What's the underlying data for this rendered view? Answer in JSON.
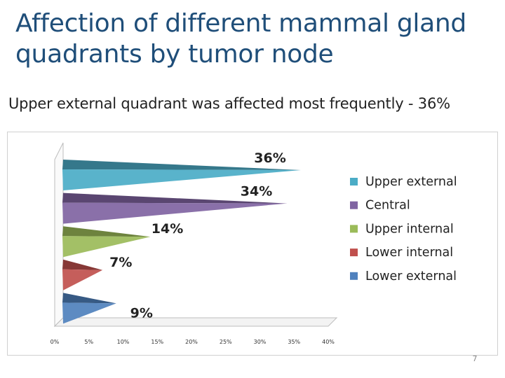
{
  "slide": {
    "title": "Affection of different mammal gland quadrants by tumor node",
    "subtitle": "Upper external quadrant was affected most frequently - 36%",
    "page_number": "7"
  },
  "chart_data": {
    "type": "bar",
    "orientation": "horizontal",
    "style": "3d-pyramid",
    "categories": [
      "Upper external",
      "Central",
      "Upper internal",
      "Lower internal",
      "Lower external"
    ],
    "values": [
      36,
      34,
      14,
      7,
      9
    ],
    "data_labels": [
      "36%",
      "34%",
      "14%",
      "7%",
      "9%"
    ],
    "colors": [
      "#4bacc6",
      "#8064a2",
      "#9bbb59",
      "#c0504d",
      "#4f81bd"
    ],
    "x_ticks": [
      "0%",
      "5%",
      "10%",
      "15%",
      "20%",
      "25%",
      "30%",
      "35%",
      "40%"
    ],
    "xlim": [
      0,
      40
    ],
    "legend_position": "right",
    "grid": false
  }
}
